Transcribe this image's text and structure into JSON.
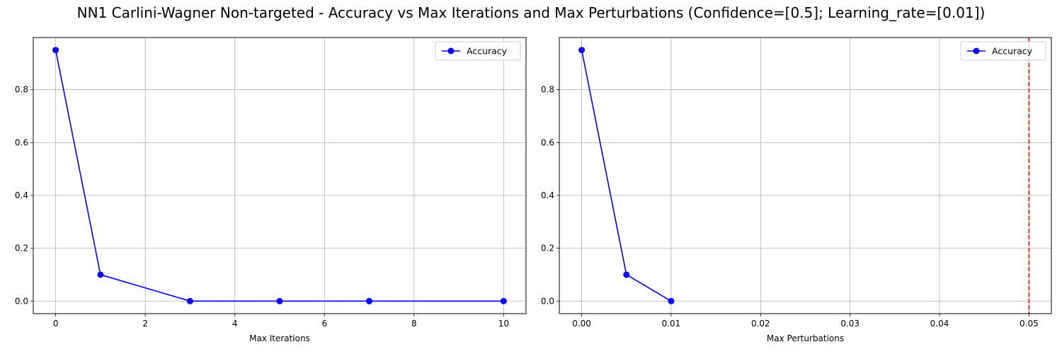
{
  "figure": {
    "title": "NN1 Carlini-Wagner Non-targeted - Accuracy vs Max Iterations and Max Perturbations (Confidence=[0.5]; Learning_rate=[0.01])"
  },
  "chart_data": [
    {
      "type": "line",
      "xlabel": "Max Iterations",
      "ylabel": "",
      "xlim": [
        -0.5,
        10.5
      ],
      "ylim": [
        -0.0475,
        0.9975
      ],
      "xticks": [
        0,
        2,
        4,
        6,
        8,
        10
      ],
      "yticks": [
        0.0,
        0.2,
        0.4,
        0.6,
        0.8
      ],
      "xtick_labels": [
        "0",
        "2",
        "4",
        "6",
        "8",
        "10"
      ],
      "ytick_labels": [
        "0.0",
        "0.2",
        "0.4",
        "0.6",
        "0.8"
      ],
      "grid": true,
      "legend": "top-right",
      "series": [
        {
          "name": "Accuracy",
          "color": "#0000ff",
          "marker": "circle",
          "x": [
            0,
            1,
            3,
            5,
            7,
            10
          ],
          "y": [
            0.95,
            0.1,
            0.0,
            0.0,
            0.0,
            0.0
          ]
        }
      ],
      "vlines": []
    },
    {
      "type": "line",
      "xlabel": "Max Perturbations",
      "ylabel": "",
      "xlim": [
        -0.0025,
        0.0525
      ],
      "ylim": [
        -0.0475,
        0.9975
      ],
      "xticks": [
        0.0,
        0.01,
        0.02,
        0.03,
        0.04,
        0.05
      ],
      "yticks": [
        0.0,
        0.2,
        0.4,
        0.6,
        0.8
      ],
      "xtick_labels": [
        "0.00",
        "0.01",
        "0.02",
        "0.03",
        "0.04",
        "0.05"
      ],
      "ytick_labels": [
        "0.0",
        "0.2",
        "0.4",
        "0.6",
        "0.8"
      ],
      "grid": true,
      "legend": "top-right",
      "series": [
        {
          "name": "Accuracy",
          "color": "#0000ff",
          "marker": "circle",
          "x": [
            0.0,
            0.005,
            0.01
          ],
          "y": [
            0.95,
            0.1,
            0.0
          ]
        }
      ],
      "vlines": [
        {
          "x": 0.05,
          "color": "#ff0000",
          "style": "dashed"
        }
      ]
    }
  ]
}
